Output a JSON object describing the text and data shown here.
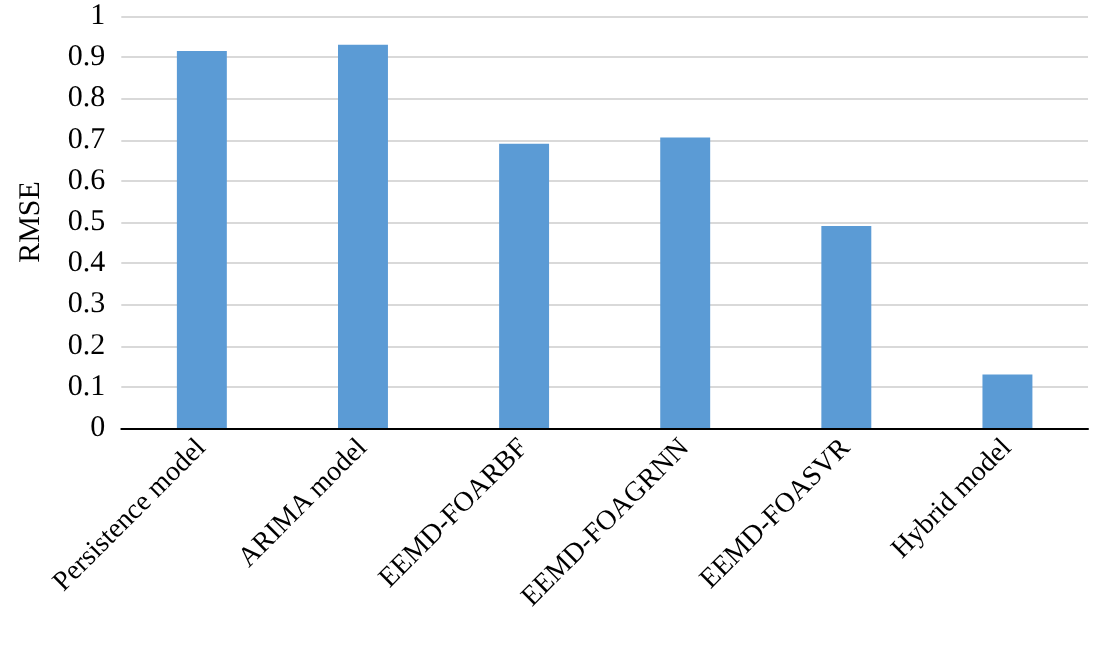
{
  "chart_data": {
    "type": "bar",
    "ylabel": "RMSE",
    "categories": [
      "Persistence model",
      "ARIMA model",
      "EEMD-FOARBF",
      "EEMD-FOAGRNN",
      "EEMD-FOASVR",
      "Hybrid model"
    ],
    "values": [
      0.915,
      0.93,
      0.69,
      0.705,
      0.49,
      0.13
    ],
    "color": "#5b9bd5",
    "ylim": [
      0,
      1
    ],
    "yticks": [
      0,
      0.1,
      0.2,
      0.3,
      0.4,
      0.5,
      0.6,
      0.7,
      0.8,
      0.9,
      1
    ],
    "grid": "y"
  }
}
